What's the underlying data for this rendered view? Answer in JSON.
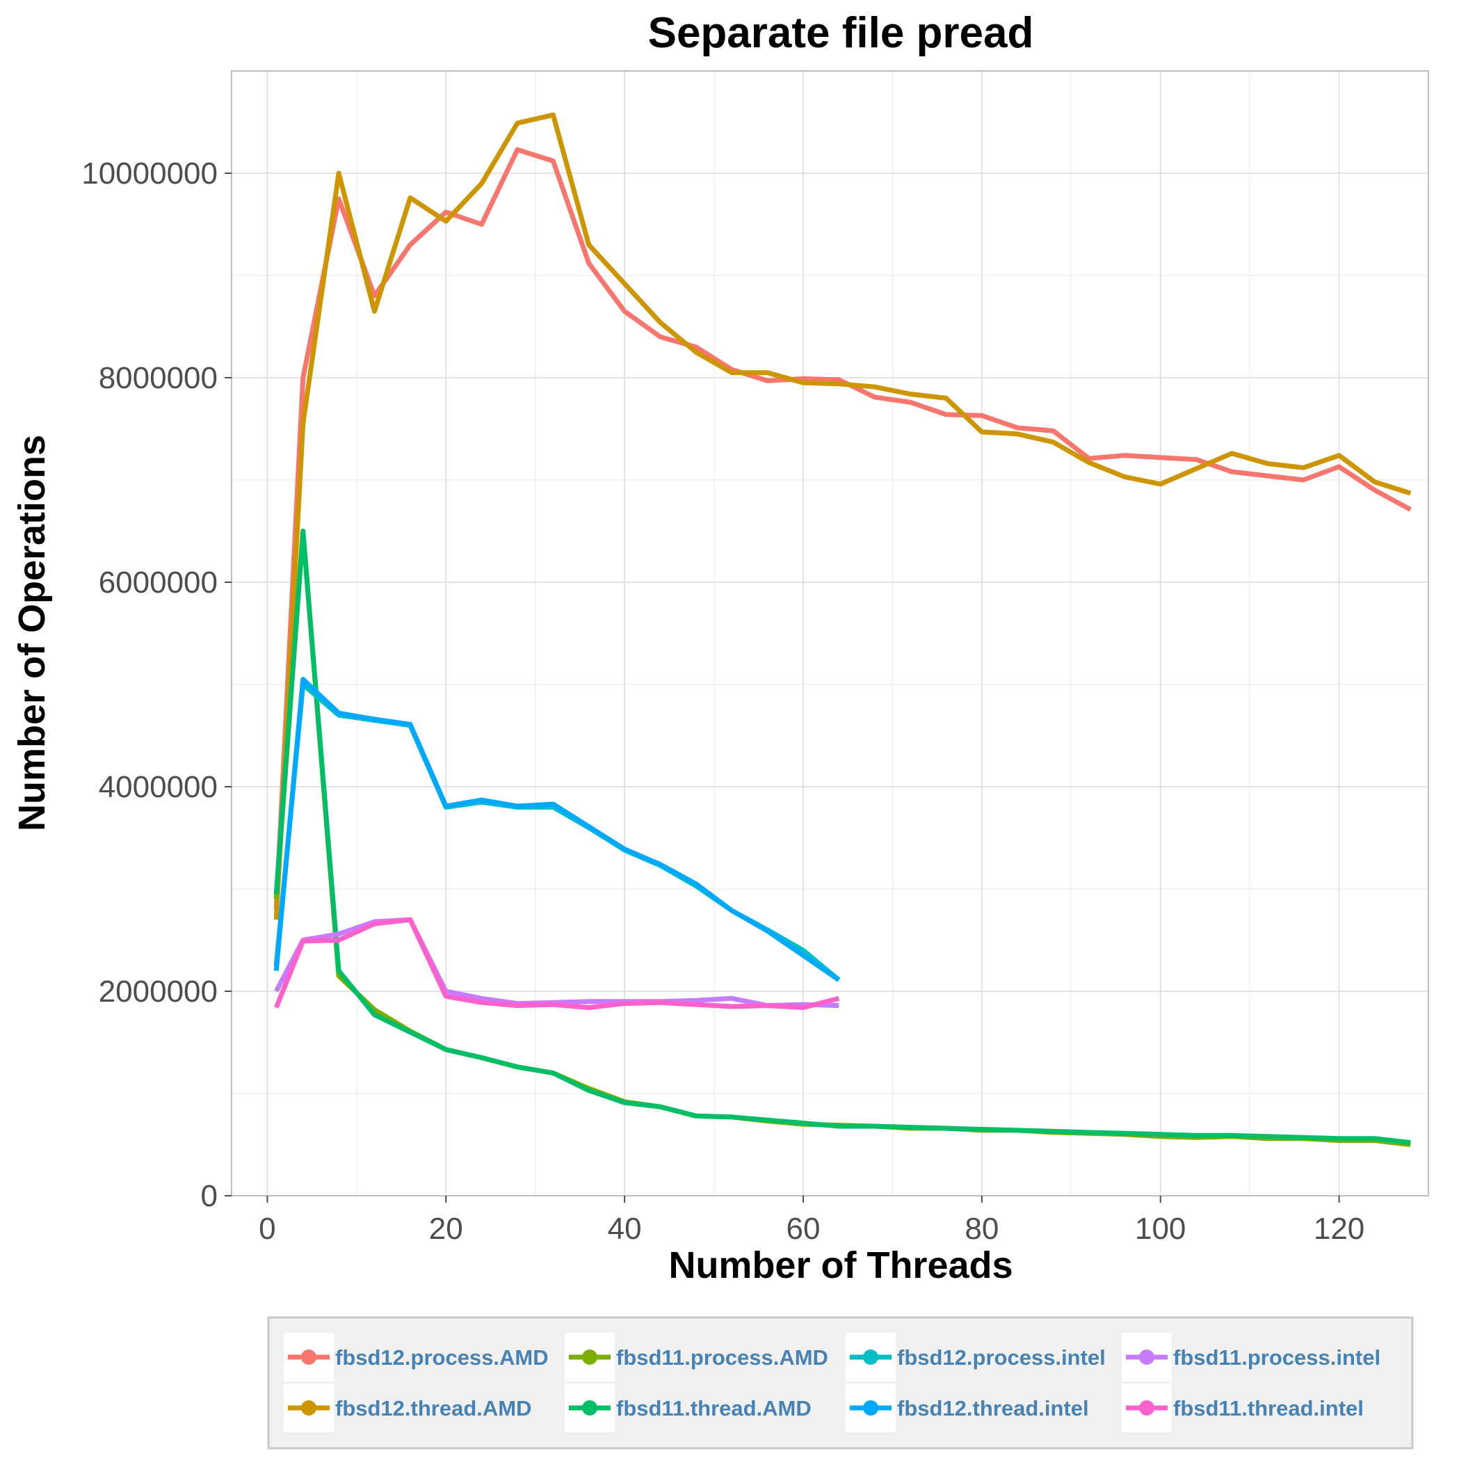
{
  "chart_data": {
    "type": "line",
    "title": "Separate file pread",
    "xlabel": "Number of Threads",
    "ylabel": "Number of Operations",
    "xlim": [
      -4,
      130
    ],
    "ylim": [
      0,
      11000000
    ],
    "x_ticks": [
      0,
      20,
      40,
      60,
      80,
      100,
      120
    ],
    "x_tick_labels": [
      "0",
      "20",
      "40",
      "60",
      "80",
      "100",
      "120"
    ],
    "y_ticks": [
      0,
      2000000,
      4000000,
      6000000,
      8000000,
      10000000
    ],
    "y_tick_labels": [
      "0",
      "2000000",
      "4000000",
      "6000000",
      "8000000",
      "10000000"
    ],
    "grid": true,
    "legend_position": "bottom",
    "series": [
      {
        "name": "fbsd12.process.AMD",
        "color": "#f8766d",
        "x": [
          1,
          4,
          8,
          12,
          16,
          20,
          24,
          28,
          32,
          36,
          40,
          44,
          48,
          52,
          56,
          60,
          64,
          68,
          72,
          76,
          80,
          84,
          88,
          92,
          96,
          100,
          104,
          108,
          112,
          116,
          120,
          124,
          128
        ],
        "y": [
          2800000,
          8000000,
          9750000,
          8800000,
          9300000,
          9620000,
          9500000,
          10230000,
          10120000,
          9120000,
          8650000,
          8400000,
          8300000,
          8080000,
          7970000,
          7990000,
          7980000,
          7810000,
          7760000,
          7640000,
          7630000,
          7510000,
          7480000,
          7210000,
          7240000,
          7220000,
          7200000,
          7080000,
          7040000,
          7000000,
          7130000,
          6900000,
          6710000
        ]
      },
      {
        "name": "fbsd12.thread.AMD",
        "color": "#cd9600",
        "x": [
          1,
          4,
          8,
          12,
          16,
          20,
          24,
          28,
          32,
          36,
          40,
          44,
          48,
          52,
          56,
          60,
          64,
          68,
          72,
          76,
          80,
          84,
          88,
          92,
          96,
          100,
          104,
          108,
          112,
          116,
          120,
          124,
          128
        ],
        "y": [
          2700000,
          7550000,
          10000000,
          8650000,
          9760000,
          9530000,
          9900000,
          10490000,
          10570000,
          9300000,
          8920000,
          8540000,
          8250000,
          8050000,
          8050000,
          7950000,
          7940000,
          7910000,
          7840000,
          7800000,
          7470000,
          7450000,
          7370000,
          7170000,
          7030000,
          6960000,
          7110000,
          7260000,
          7160000,
          7120000,
          7240000,
          6980000,
          6870000
        ]
      },
      {
        "name": "fbsd11.process.AMD",
        "color": "#7cae00",
        "x": [
          1,
          4,
          8,
          12,
          16,
          20,
          24,
          28,
          32,
          36,
          40,
          44,
          48,
          52,
          56,
          60,
          64,
          68,
          72,
          76,
          80,
          84,
          88,
          92,
          96,
          100,
          104,
          108,
          112,
          116,
          120,
          124,
          128
        ],
        "y": [
          2900000,
          6500000,
          2150000,
          1820000,
          1610000,
          1430000,
          1350000,
          1260000,
          1200000,
          1050000,
          920000,
          870000,
          780000,
          770000,
          730000,
          700000,
          690000,
          680000,
          660000,
          660000,
          640000,
          640000,
          620000,
          610000,
          600000,
          580000,
          570000,
          580000,
          560000,
          560000,
          540000,
          540000,
          500000
        ]
      },
      {
        "name": "fbsd11.thread.AMD",
        "color": "#00be67",
        "x": [
          1,
          4,
          8,
          12,
          16,
          20,
          24,
          28,
          32,
          36,
          40,
          44,
          48,
          52,
          56,
          60,
          64,
          68,
          72,
          76,
          80,
          84,
          88,
          92,
          96,
          100,
          104,
          108,
          112,
          116,
          120,
          124,
          128
        ],
        "y": [
          2950000,
          6500000,
          2200000,
          1770000,
          1600000,
          1430000,
          1350000,
          1260000,
          1200000,
          1030000,
          910000,
          870000,
          780000,
          770000,
          740000,
          710000,
          680000,
          680000,
          670000,
          660000,
          650000,
          640000,
          630000,
          620000,
          610000,
          600000,
          590000,
          590000,
          580000,
          570000,
          560000,
          560000,
          520000
        ]
      },
      {
        "name": "fbsd12.process.intel",
        "color": "#00bfc4",
        "x": [
          1,
          4,
          8,
          12,
          16,
          20,
          24,
          28,
          32,
          36,
          40,
          44,
          48,
          52,
          56,
          60,
          64
        ],
        "y": [
          2250000,
          5000000,
          4700000,
          4650000,
          4600000,
          3800000,
          3850000,
          3800000,
          3800000,
          3600000,
          3380000,
          3230000,
          3030000,
          2790000,
          2600000,
          2400000,
          2110000
        ]
      },
      {
        "name": "fbsd12.thread.intel",
        "color": "#00a9ff",
        "x": [
          1,
          4,
          8,
          12,
          16,
          20,
          24,
          28,
          32,
          36,
          40,
          44,
          48,
          52,
          56,
          60,
          64
        ],
        "y": [
          2200000,
          5050000,
          4720000,
          4660000,
          4610000,
          3810000,
          3870000,
          3810000,
          3830000,
          3610000,
          3390000,
          3240000,
          3050000,
          2790000,
          2590000,
          2350000,
          2110000
        ]
      },
      {
        "name": "fbsd11.process.intel",
        "color": "#c77cff",
        "x": [
          1,
          4,
          8,
          12,
          16,
          20,
          24,
          28,
          32,
          36,
          40,
          44,
          48,
          52,
          56,
          60,
          64
        ],
        "y": [
          2000000,
          2500000,
          2560000,
          2680000,
          2700000,
          2000000,
          1930000,
          1880000,
          1890000,
          1900000,
          1900000,
          1900000,
          1910000,
          1930000,
          1860000,
          1870000,
          1860000
        ]
      },
      {
        "name": "fbsd11.thread.intel",
        "color": "#ff61cc",
        "x": [
          1,
          4,
          8,
          12,
          16,
          20,
          24,
          28,
          32,
          36,
          40,
          44,
          48,
          52,
          56,
          60,
          64
        ],
        "y": [
          1840000,
          2490000,
          2500000,
          2660000,
          2700000,
          1950000,
          1890000,
          1860000,
          1870000,
          1840000,
          1880000,
          1890000,
          1870000,
          1850000,
          1860000,
          1840000,
          1930000
        ]
      }
    ]
  }
}
